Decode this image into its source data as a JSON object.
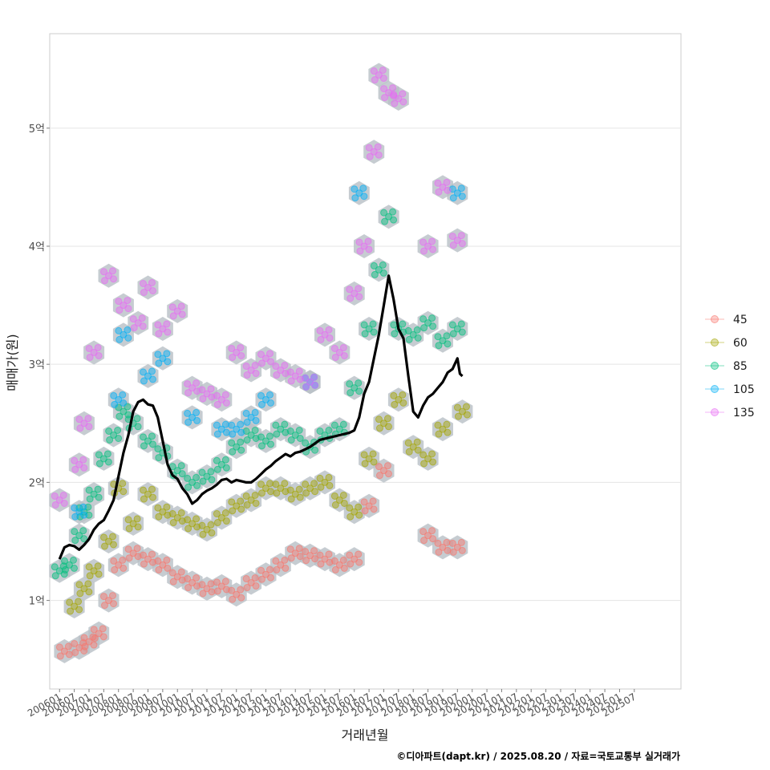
{
  "chart_data": {
    "type": "scatter",
    "title": "",
    "xlabel": "거래년월",
    "ylabel": "매매가(원)",
    "caption": "©디아파트(dapt.kr) / 2025.08.20 / 자료=국토교통부 실거래가",
    "y_range_eok": [
      0.25,
      5.8
    ],
    "y_ticks": [
      {
        "value": 1,
        "label": "1억"
      },
      {
        "value": 2,
        "label": "2억"
      },
      {
        "value": 3,
        "label": "3억"
      },
      {
        "value": 4,
        "label": "4억"
      },
      {
        "value": 5,
        "label": "5억"
      }
    ],
    "x_range_months": [
      "2005-09",
      "2027-02"
    ],
    "x_ticks": [
      "200601",
      "200607",
      "200701",
      "200707",
      "200801",
      "200807",
      "200901",
      "200907",
      "201001",
      "201007",
      "201101",
      "201107",
      "201201",
      "201207",
      "201301",
      "201307",
      "201401",
      "201407",
      "201501",
      "201507",
      "201601",
      "201607",
      "201701",
      "201707",
      "201801",
      "201807",
      "201901",
      "201907",
      "202001",
      "202007",
      "202101",
      "202107",
      "202201",
      "202207",
      "202301",
      "202307",
      "202401",
      "202407",
      "202501",
      "202507"
    ],
    "legend": {
      "title": "",
      "position": "right",
      "entries": [
        {
          "label": "45",
          "color": "#F8766D"
        },
        {
          "label": "60",
          "color": "#A3A500"
        },
        {
          "label": "85",
          "color": "#00BF7D"
        },
        {
          "label": "105",
          "color": "#00B0F6"
        },
        {
          "label": "135",
          "color": "#E76BF3"
        }
      ]
    },
    "hexbin_color": "#b8bfc6",
    "trend_line": {
      "name": "moving average",
      "color": "#000000",
      "points": [
        [
          "2006-01",
          1.35
        ],
        [
          "2006-03",
          1.45
        ],
        [
          "2006-05",
          1.47
        ],
        [
          "2006-07",
          1.46
        ],
        [
          "2006-09",
          1.43
        ],
        [
          "2006-11",
          1.47
        ],
        [
          "2007-01",
          1.52
        ],
        [
          "2007-03",
          1.6
        ],
        [
          "2007-05",
          1.65
        ],
        [
          "2007-07",
          1.68
        ],
        [
          "2007-09",
          1.76
        ],
        [
          "2007-11",
          1.85
        ],
        [
          "2008-01",
          2.05
        ],
        [
          "2008-03",
          2.25
        ],
        [
          "2008-05",
          2.4
        ],
        [
          "2008-07",
          2.6
        ],
        [
          "2008-09",
          2.68
        ],
        [
          "2008-11",
          2.7
        ],
        [
          "2009-01",
          2.66
        ],
        [
          "2009-03",
          2.65
        ],
        [
          "2009-05",
          2.55
        ],
        [
          "2009-07",
          2.35
        ],
        [
          "2009-09",
          2.15
        ],
        [
          "2009-11",
          2.06
        ],
        [
          "2010-01",
          2.03
        ],
        [
          "2010-03",
          1.95
        ],
        [
          "2010-05",
          1.9
        ],
        [
          "2010-07",
          1.82
        ],
        [
          "2010-09",
          1.85
        ],
        [
          "2010-11",
          1.9
        ],
        [
          "2011-01",
          1.93
        ],
        [
          "2011-03",
          1.95
        ],
        [
          "2011-05",
          1.98
        ],
        [
          "2011-07",
          2.02
        ],
        [
          "2011-09",
          2.03
        ],
        [
          "2011-11",
          2.0
        ],
        [
          "2012-01",
          2.02
        ],
        [
          "2012-03",
          2.01
        ],
        [
          "2012-05",
          2.0
        ],
        [
          "2012-07",
          2.0
        ],
        [
          "2012-09",
          2.03
        ],
        [
          "2012-11",
          2.07
        ],
        [
          "2013-01",
          2.11
        ],
        [
          "2013-03",
          2.14
        ],
        [
          "2013-05",
          2.18
        ],
        [
          "2013-07",
          2.21
        ],
        [
          "2013-09",
          2.24
        ],
        [
          "2013-11",
          2.22
        ],
        [
          "2014-01",
          2.25
        ],
        [
          "2014-03",
          2.26
        ],
        [
          "2014-05",
          2.28
        ],
        [
          "2014-07",
          2.3
        ],
        [
          "2014-09",
          2.33
        ],
        [
          "2014-11",
          2.36
        ],
        [
          "2015-01",
          2.37
        ],
        [
          "2015-03",
          2.38
        ],
        [
          "2015-05",
          2.39
        ],
        [
          "2015-07",
          2.4
        ],
        [
          "2015-09",
          2.41
        ],
        [
          "2015-11",
          2.42
        ],
        [
          "2016-01",
          2.44
        ],
        [
          "2016-03",
          2.55
        ],
        [
          "2016-05",
          2.75
        ],
        [
          "2016-07",
          2.85
        ],
        [
          "2016-09",
          3.05
        ],
        [
          "2016-11",
          3.25
        ],
        [
          "2017-01",
          3.5
        ],
        [
          "2017-03",
          3.75
        ],
        [
          "2017-05",
          3.55
        ],
        [
          "2017-07",
          3.3
        ],
        [
          "2017-09",
          3.22
        ],
        [
          "2017-11",
          2.9
        ],
        [
          "2018-01",
          2.6
        ],
        [
          "2018-03",
          2.55
        ],
        [
          "2018-05",
          2.65
        ],
        [
          "2018-07",
          2.72
        ],
        [
          "2018-09",
          2.75
        ],
        [
          "2018-11",
          2.8
        ],
        [
          "2019-01",
          2.85
        ],
        [
          "2019-03",
          2.93
        ],
        [
          "2019-05",
          2.96
        ],
        [
          "2019-07",
          3.05
        ],
        [
          "2019-08",
          2.92
        ],
        [
          "2019-09",
          2.9
        ]
      ]
    },
    "point_clusters": [
      {
        "series": "45",
        "points": [
          [
            "2006-03",
            0.57
          ],
          [
            "2006-09",
            0.6
          ],
          [
            "2007-01",
            0.65
          ],
          [
            "2007-05",
            0.72
          ],
          [
            "2007-09",
            1.0
          ],
          [
            "2008-01",
            1.3
          ],
          [
            "2008-07",
            1.4
          ],
          [
            "2009-01",
            1.35
          ],
          [
            "2009-07",
            1.3
          ],
          [
            "2010-01",
            1.2
          ],
          [
            "2010-07",
            1.15
          ],
          [
            "2011-01",
            1.1
          ],
          [
            "2011-07",
            1.12
          ],
          [
            "2012-01",
            1.05
          ],
          [
            "2012-07",
            1.15
          ],
          [
            "2013-01",
            1.22
          ],
          [
            "2013-07",
            1.3
          ],
          [
            "2014-01",
            1.4
          ],
          [
            "2014-07",
            1.38
          ],
          [
            "2015-01",
            1.35
          ],
          [
            "2015-07",
            1.3
          ],
          [
            "2016-01",
            1.35
          ],
          [
            "2016-07",
            1.8
          ],
          [
            "2017-01",
            2.1
          ],
          [
            "2018-07",
            1.55
          ],
          [
            "2019-01",
            1.45
          ],
          [
            "2019-07",
            1.45
          ]
        ]
      },
      {
        "series": "60",
        "points": [
          [
            "2006-07",
            0.95
          ],
          [
            "2006-11",
            1.1
          ],
          [
            "2007-03",
            1.25
          ],
          [
            "2007-09",
            1.5
          ],
          [
            "2008-01",
            1.95
          ],
          [
            "2008-07",
            1.65
          ],
          [
            "2009-01",
            1.9
          ],
          [
            "2009-07",
            1.75
          ],
          [
            "2010-01",
            1.7
          ],
          [
            "2010-07",
            1.65
          ],
          [
            "2011-01",
            1.6
          ],
          [
            "2011-07",
            1.7
          ],
          [
            "2012-01",
            1.8
          ],
          [
            "2012-07",
            1.85
          ],
          [
            "2013-01",
            1.95
          ],
          [
            "2013-07",
            1.95
          ],
          [
            "2014-01",
            1.9
          ],
          [
            "2014-07",
            1.95
          ],
          [
            "2015-01",
            2.0
          ],
          [
            "2015-07",
            1.85
          ],
          [
            "2016-01",
            1.75
          ],
          [
            "2016-07",
            2.2
          ],
          [
            "2017-01",
            2.5
          ],
          [
            "2017-07",
            2.7
          ],
          [
            "2018-01",
            2.3
          ],
          [
            "2018-07",
            2.2
          ],
          [
            "2019-01",
            2.45
          ],
          [
            "2019-09",
            2.6
          ]
        ]
      },
      {
        "series": "85",
        "points": [
          [
            "2006-01",
            1.25
          ],
          [
            "2006-05",
            1.3
          ],
          [
            "2006-09",
            1.55
          ],
          [
            "2006-11",
            1.75
          ],
          [
            "2007-03",
            1.9
          ],
          [
            "2007-07",
            2.2
          ],
          [
            "2007-11",
            2.4
          ],
          [
            "2008-03",
            2.6
          ],
          [
            "2008-07",
            2.5
          ],
          [
            "2009-01",
            2.35
          ],
          [
            "2009-07",
            2.25
          ],
          [
            "2010-01",
            2.1
          ],
          [
            "2010-07",
            2.0
          ],
          [
            "2011-01",
            2.05
          ],
          [
            "2011-07",
            2.15
          ],
          [
            "2012-01",
            2.3
          ],
          [
            "2012-07",
            2.4
          ],
          [
            "2013-01",
            2.35
          ],
          [
            "2013-07",
            2.45
          ],
          [
            "2014-01",
            2.4
          ],
          [
            "2014-07",
            2.3
          ],
          [
            "2015-01",
            2.4
          ],
          [
            "2015-07",
            2.45
          ],
          [
            "2016-01",
            2.8
          ],
          [
            "2016-07",
            3.3
          ],
          [
            "2016-11",
            3.8
          ],
          [
            "2017-03",
            4.25
          ],
          [
            "2017-07",
            3.3
          ],
          [
            "2018-01",
            3.25
          ],
          [
            "2018-07",
            3.35
          ],
          [
            "2019-01",
            3.2
          ],
          [
            "2019-07",
            3.3
          ]
        ]
      },
      {
        "series": "105",
        "points": [
          [
            "2006-09",
            1.75
          ],
          [
            "2008-01",
            2.7
          ],
          [
            "2008-03",
            3.25
          ],
          [
            "2009-01",
            2.9
          ],
          [
            "2009-07",
            3.05
          ],
          [
            "2010-07",
            2.55
          ],
          [
            "2011-07",
            2.45
          ],
          [
            "2012-01",
            2.45
          ],
          [
            "2012-07",
            2.55
          ],
          [
            "2013-01",
            2.7
          ],
          [
            "2014-07",
            2.85
          ],
          [
            "2016-03",
            4.45
          ],
          [
            "2019-07",
            4.45
          ]
        ]
      },
      {
        "series": "135",
        "points": [
          [
            "2006-01",
            1.85
          ],
          [
            "2006-09",
            2.15
          ],
          [
            "2006-11",
            2.5
          ],
          [
            "2007-03",
            3.1
          ],
          [
            "2007-09",
            3.75
          ],
          [
            "2008-03",
            3.5
          ],
          [
            "2008-09",
            3.35
          ],
          [
            "2009-01",
            3.65
          ],
          [
            "2009-07",
            3.3
          ],
          [
            "2010-01",
            3.45
          ],
          [
            "2010-07",
            2.8
          ],
          [
            "2011-01",
            2.75
          ],
          [
            "2011-07",
            2.7
          ],
          [
            "2012-01",
            3.1
          ],
          [
            "2012-07",
            2.95
          ],
          [
            "2013-01",
            3.05
          ],
          [
            "2013-07",
            2.95
          ],
          [
            "2014-01",
            2.9
          ],
          [
            "2014-07",
            2.85
          ],
          [
            "2015-01",
            3.25
          ],
          [
            "2015-07",
            3.1
          ],
          [
            "2016-01",
            3.6
          ],
          [
            "2016-05",
            4.0
          ],
          [
            "2016-09",
            4.8
          ],
          [
            "2016-11",
            5.45
          ],
          [
            "2017-03",
            5.3
          ],
          [
            "2017-07",
            5.25
          ],
          [
            "2018-07",
            4.0
          ],
          [
            "2019-01",
            4.5
          ],
          [
            "2019-07",
            4.05
          ]
        ]
      }
    ]
  }
}
